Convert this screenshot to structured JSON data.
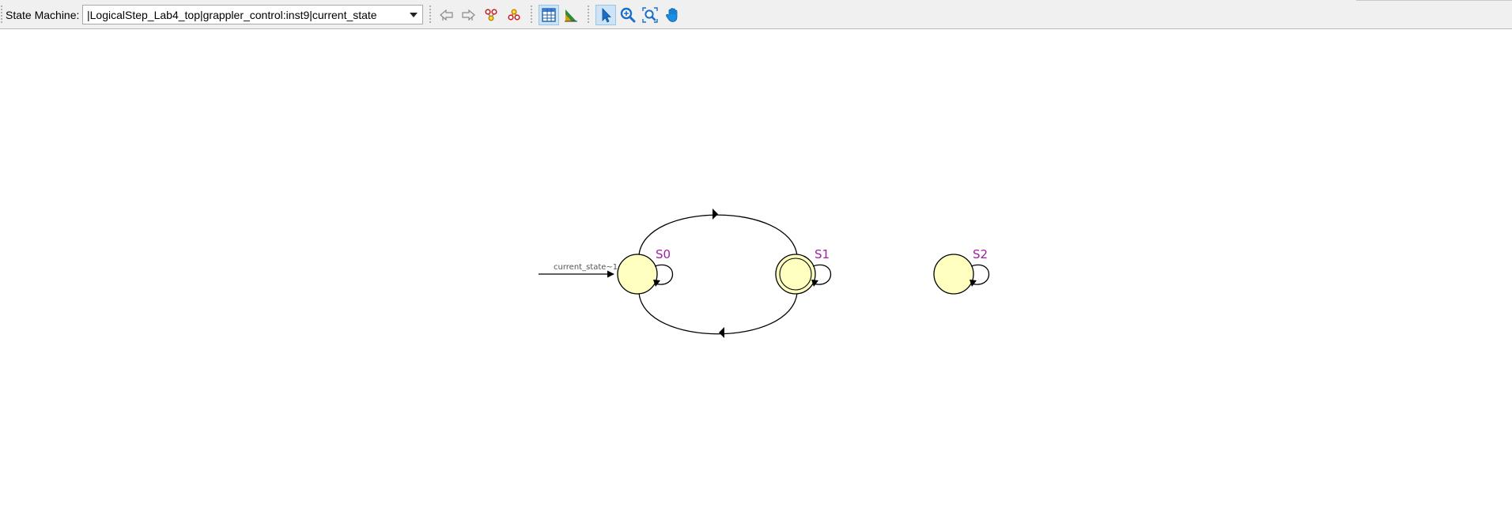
{
  "toolbar": {
    "state_machine_label": "State Machine:",
    "state_machine_value": "|LogicalStep_Lab4_top|grappler_control:inst9|current_state",
    "buttons": [
      {
        "name": "back-button",
        "icon": "back-arrow-icon"
      },
      {
        "name": "forward-button",
        "icon": "forward-arrow-icon"
      },
      {
        "name": "highlight-fanin-button",
        "icon": "fan-in-icon"
      },
      {
        "name": "highlight-fanout-button",
        "icon": "fan-out-icon"
      },
      {
        "name": "diagram-view-button",
        "icon": "table-grid-icon",
        "active": true
      },
      {
        "name": "filter-button",
        "icon": "filter-triangle-icon"
      },
      {
        "name": "selection-tool-button",
        "icon": "pointer-arrow-icon",
        "active": true
      },
      {
        "name": "zoom-tool-button",
        "icon": "zoom-in-icon"
      },
      {
        "name": "fit-in-window-button",
        "icon": "zoom-fit-icon"
      },
      {
        "name": "hand-tool-button",
        "icon": "hand-icon"
      }
    ]
  },
  "diagram": {
    "states": [
      {
        "id": "S0",
        "label": "S0",
        "initial": true,
        "double_circle": false
      },
      {
        "id": "S1",
        "label": "S1",
        "initial": false,
        "double_circle": true
      },
      {
        "id": "S2",
        "label": "S2",
        "initial": false,
        "double_circle": false
      }
    ],
    "reset_transition_label": "current_state~1",
    "colors": {
      "state_fill": "#ffffc0",
      "state_label": "#a020a0",
      "selected_button": "#cde4f7"
    }
  }
}
